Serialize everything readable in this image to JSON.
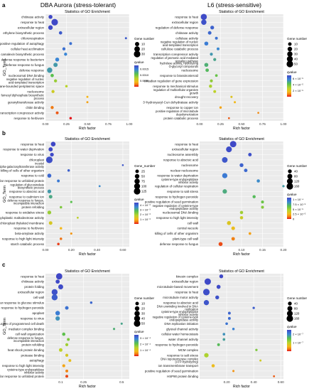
{
  "figure": {
    "left_title": "DBA Aurora (stress-tolerant)",
    "right_title": "L6 (stress-sensitive)",
    "panel_title": "Statistics of GO Enrichment",
    "y_label": "GO_Term",
    "x_label": "Rich factor",
    "gene_number_label": "Gene number",
    "qvalue_label": "qvalue"
  },
  "colors": {
    "gradient": [
      "#e4141b",
      "#f07a13",
      "#f6b81a",
      "#b9d42a",
      "#59c04e",
      "#3a86d6",
      "#3f46c6"
    ]
  },
  "chart_data": [
    {
      "type": "scatter",
      "row": "a",
      "side": "left",
      "title": "Statistics of GO Enrichment",
      "xlabel": "Rich factor",
      "ylabel": "GO_Term",
      "xlim": [
        0,
        1
      ],
      "x_ticks": [
        "0.00",
        "0.25",
        "0.50",
        "0.75",
        "1.00"
      ],
      "legend_size": {
        "title": "Gene number",
        "labels": [
          "10",
          "20",
          "30"
        ],
        "sizes": [
          10,
          20,
          30
        ]
      },
      "legend_color": {
        "title": "qvalue",
        "labels": [
          "0.0015",
          "0.0010",
          "0.0005"
        ],
        "stops": [
          0.0015,
          0.001,
          0.0005
        ],
        "range": [
          0,
          0.0018
        ]
      },
      "terms": [
        "chitinase activity",
        "response to heat",
        "extracellular region",
        "ethylene biosynthetic process",
        "chlororespiration",
        "positive regulation of autophagy",
        "cellular heat acclimation",
        "camalexin biosynthetic process",
        "defense response to bacterium",
        "defense response to fungus",
        "defense response",
        "nucleosomal DNA binding",
        "negative regulation of nucleic acid-templated transcription",
        "outer membrane-bounded periplasmic space",
        "nucleosome",
        "farnesyl diphosphate biosynthetic process",
        "geranyltransferase activity",
        "chitin binding",
        "transcription corepressor activity",
        "response to herbivore"
      ],
      "x": [
        0.06,
        0.11,
        0.06,
        0.18,
        0.96,
        0.3,
        0.22,
        0.24,
        0.14,
        0.12,
        0.05,
        0.08,
        0.12,
        0.25,
        0.09,
        0.5,
        0.5,
        0.08,
        0.14,
        0.3
      ],
      "gene": [
        8,
        30,
        12,
        5,
        1,
        3,
        4,
        4,
        8,
        10,
        18,
        5,
        4,
        2,
        4,
        1,
        1,
        4,
        3,
        2
      ],
      "qvalue": [
        1e-05,
        1e-05,
        2e-05,
        0.0001,
        0.0001,
        0.0002,
        0.0002,
        0.0003,
        0.0003,
        0.0004,
        0.0004,
        0.0006,
        0.0008,
        0.0009,
        0.001,
        0.0012,
        0.0013,
        0.0015,
        0.0016,
        0.0018
      ]
    },
    {
      "type": "scatter",
      "row": "a",
      "side": "right",
      "title": "Statistics of GO Enrichment",
      "xlabel": "Rich factor",
      "ylabel": "",
      "xlim": [
        0,
        1
      ],
      "x_ticks": [
        "0.00",
        "0.25",
        "0.50",
        "0.75",
        "1.00"
      ],
      "legend_size": {
        "title": "Gene number",
        "labels": [
          "10",
          "20",
          "30",
          "40",
          "50"
        ],
        "sizes": [
          10,
          20,
          30,
          40,
          50
        ]
      },
      "legend_color": {
        "title": "qvalue",
        "labels": [
          "6 × 10⁻⁵",
          "4 × 10⁻⁵",
          "2 × 10⁻⁵"
        ],
        "stops": [
          6e-05,
          4e-05,
          2e-05
        ],
        "range": [
          0,
          7e-05
        ]
      },
      "terms": [
        "response to heat",
        "extracellular region",
        "regulation of defense response",
        "chitinase activity",
        "cellulase activity",
        "negative regulation of nucleic acid-templated transcription",
        "cellulose catabolic process",
        "transcription corepressor activity",
        "regulation of jasmonic acid mediated signaling pathway",
        "hydrolase activity, hydrolyzing O-glycosyl compounds",
        "nucleosome",
        "response to brassinosteroid",
        "circadian regulation of gene expression",
        "response to mechanical stimulus",
        "regulation of multicellular organism growth",
        "drought recovery",
        "3'-hydroxyacyl-CoA dehydratase activity",
        "response to copper ion",
        "positive regulation of microtubule depolymerization",
        "protein catabolic process"
      ],
      "x": [
        0.05,
        0.05,
        0.15,
        0.12,
        0.2,
        0.08,
        0.22,
        0.14,
        0.18,
        0.08,
        0.09,
        0.2,
        0.14,
        0.13,
        0.18,
        0.38,
        0.42,
        0.25,
        0.7,
        0.35
      ],
      "gene": [
        42,
        30,
        12,
        10,
        5,
        14,
        5,
        6,
        6,
        14,
        9,
        4,
        6,
        7,
        5,
        2,
        2,
        3,
        1,
        1
      ],
      "qvalue": [
        1e-06,
        2e-06,
        5e-06,
        6e-06,
        8e-06,
        1e-05,
        1.2e-05,
        1.5e-05,
        1.8e-05,
        2e-05,
        2.2e-05,
        2.5e-05,
        3e-05,
        3.3e-05,
        3.6e-05,
        4.2e-05,
        4.6e-05,
        5e-05,
        5.5e-05,
        6.2e-05
      ]
    },
    {
      "type": "scatter",
      "row": "b",
      "side": "left",
      "title": "Statistics of GO Enrichment",
      "xlabel": "Rich factor",
      "ylabel": "GO_Term",
      "xlim": [
        0,
        0.65
      ],
      "x_ticks": [
        "0.00",
        "0.20",
        "0.40",
        "0.60"
      ],
      "legend_size": {
        "title": "Gene_number",
        "labels": [
          "25",
          "50",
          "75",
          "100",
          "125"
        ],
        "sizes": [
          25,
          50,
          75,
          100,
          125
        ]
      },
      "legend_color": {
        "title": "qvalue",
        "labels": [
          "4 × 10⁻³",
          "3 × 10⁻³",
          "2 × 10⁻³",
          "1 × 10⁻³"
        ],
        "stops": [
          0.004,
          0.003,
          0.002,
          0.001
        ],
        "range": [
          0,
          0.0045
        ]
      },
      "terms": [
        "response to heat",
        "response to water deprivation",
        "response to virus",
        "chloroplast",
        "inositol 3-alpha-galactosyltransferase activity",
        "killing of cells of other organism",
        "response to cold",
        "cellular response to unfolded protein",
        "regulation of glucosinolate biosynthetic process",
        "response to abscisic acid",
        "response to cadmium ion",
        "defense response to fungus, incompatible interaction",
        "protein refolding",
        "response to oxidative stress",
        "amyloplastic maltodextrose activity",
        "chloroplast thylakoid membrane",
        "response to herbivore",
        "beta-amylase activity",
        "response to high light intensity",
        "starch catabolic process"
      ],
      "x": [
        0.06,
        0.04,
        0.05,
        0.03,
        0.6,
        0.18,
        0.03,
        0.1,
        0.42,
        0.03,
        0.04,
        0.2,
        0.12,
        0.03,
        0.25,
        0.04,
        0.12,
        0.2,
        0.12,
        0.1
      ],
      "gene": [
        55,
        40,
        30,
        125,
        2,
        8,
        35,
        12,
        3,
        30,
        25,
        5,
        8,
        30,
        3,
        25,
        8,
        5,
        8,
        8
      ],
      "qvalue": [
        1e-05,
        2e-05,
        5e-05,
        0.0001,
        0.0002,
        0.0003,
        0.0004,
        0.0006,
        0.0008,
        0.001,
        0.0012,
        0.0015,
        0.0018,
        0.002,
        0.0023,
        0.0026,
        0.003,
        0.0034,
        0.0038,
        0.0042
      ]
    },
    {
      "type": "scatter",
      "row": "b",
      "side": "right",
      "title": "Statistics of GO Enrichment",
      "xlabel": "Rich factor",
      "ylabel": "",
      "xlim": [
        0,
        0.2
      ],
      "x_ticks": [
        "0.10",
        "0.15",
        "0.20"
      ],
      "legend_size": {
        "title": "Gene number",
        "labels": [
          "40",
          "80",
          "120",
          "160"
        ],
        "sizes": [
          40,
          80,
          120,
          160
        ]
      },
      "legend_color": {
        "title": "qvalue",
        "labels": [
          "1 × 10⁻⁴",
          "7.5 × 10⁻⁵",
          "5 × 10⁻⁵",
          "2.5 × 10⁻⁵",
          "0"
        ],
        "stops": [
          0.0001,
          7.5e-05,
          5e-05,
          2.5e-05,
          0
        ],
        "range": [
          0,
          0.00011
        ]
      },
      "terms": [
        "response to heat",
        "extracellular region",
        "nucleosome assembly",
        "response to abscisic acid",
        "nucleosome",
        "nuclear nucleosome",
        "response to water deprivation",
        "cysteine-type endopeptidase inhibitor activity",
        "regulation of cellular respiration",
        "response to salt stress",
        "response to hydrogen peroxide",
        "positive regulation of seed germination",
        "negative regulation of cysteine-type endopeptidase activity",
        "nucleosomal DNA binding",
        "response to high light intensity",
        "cell wall",
        "central vacuole",
        "killing of cells of other organism",
        "plant-type cell wall",
        "defense response to fungus"
      ],
      "x": [
        0.08,
        0.07,
        0.12,
        0.06,
        0.1,
        0.11,
        0.06,
        0.14,
        0.2,
        0.06,
        0.13,
        0.15,
        0.15,
        0.1,
        0.1,
        0.07,
        0.08,
        0.12,
        0.08,
        0.05
      ],
      "gene": [
        150,
        120,
        30,
        110,
        40,
        30,
        90,
        25,
        8,
        60,
        22,
        18,
        18,
        25,
        25,
        45,
        35,
        12,
        30,
        45
      ],
      "qvalue": [
        1e-06,
        2e-06,
        3e-06,
        5e-06,
        8e-06,
        1e-05,
        1.5e-05,
        2e-05,
        2.5e-05,
        3e-05,
        3.5e-05,
        4e-05,
        4.5e-05,
        5e-05,
        6e-05,
        6.5e-05,
        7e-05,
        8e-05,
        9e-05,
        0.0001
      ]
    },
    {
      "type": "scatter",
      "row": "c",
      "side": "left",
      "title": "Statistics of GO Enrichment",
      "xlabel": "Rich factor",
      "ylabel": "GO_Term",
      "xlim": [
        0,
        0.55
      ],
      "x_ticks": [
        "0.1",
        "0.25",
        "0.5"
      ],
      "legend_size": {
        "title": "Gene number",
        "labels": [
          "10",
          "20",
          "30",
          "40",
          "50"
        ],
        "sizes": [
          10,
          20,
          30,
          40,
          50
        ]
      },
      "legend_color": {
        "title": "qvalue",
        "labels": [
          "3 × 10⁻⁴",
          "2 × 10⁻⁴",
          "1 × 10⁻⁴"
        ],
        "stops": [
          0.0003,
          0.0002,
          0.0001
        ],
        "range": [
          0,
          0.00035
        ]
      },
      "terms": [
        "response to heat",
        "chitinase activity",
        "protein folding",
        "extracellular region",
        "cell wall",
        "cellular response to glucose stimulus",
        "response to hydrogen peroxide",
        "apoplast",
        "response to virus",
        "induction of programmed cell death",
        "mediator complex binding",
        "cell wall organization",
        "defense response to fungus, incompatible interaction",
        "protein refolding",
        "heat shock protein binding",
        "protease binding",
        "autophagy",
        "response to high light intensity",
        "cysteine-type endopeptidase inhibitor activity",
        "cellular response to unfolded protein"
      ],
      "x": [
        0.09,
        0.08,
        0.1,
        0.06,
        0.06,
        0.3,
        0.14,
        0.08,
        0.08,
        0.5,
        0.45,
        0.12,
        0.15,
        0.14,
        0.1,
        0.14,
        0.16,
        0.12,
        0.14,
        0.14
      ],
      "gene": [
        45,
        15,
        25,
        40,
        40,
        3,
        10,
        20,
        18,
        2,
        2,
        8,
        5,
        6,
        10,
        6,
        5,
        6,
        5,
        5
      ],
      "qvalue": [
        1e-06,
        3e-06,
        5e-06,
        1e-05,
        2e-05,
        3e-05,
        4e-05,
        5e-05,
        7e-05,
        9e-05,
        0.0001,
        0.00012,
        0.00014,
        0.00016,
        0.00018,
        0.0002,
        0.00022,
        0.00025,
        0.00028,
        0.00032
      ]
    },
    {
      "type": "scatter",
      "row": "c",
      "side": "right",
      "title": "Statistics of GO Enrichment",
      "xlabel": "Rich factor",
      "ylabel": "",
      "xlim": [
        0,
        0.62
      ],
      "x_ticks": [
        "0.20",
        "0.40",
        "0.60"
      ],
      "legend_size": {
        "title": "Gene number",
        "labels": [
          "40",
          "80",
          "120",
          "160"
        ],
        "sizes": [
          40,
          80,
          120,
          160
        ]
      },
      "legend_color": {
        "title": "qvalue",
        "labels": [
          "2 × 10⁻⁷",
          "1 × 10⁻⁷"
        ],
        "stops": [
          2e-07,
          1e-07
        ],
        "range": [
          0,
          2.5e-07
        ]
      },
      "terms": [
        "kinesin complex",
        "extracellular region",
        "microtubule-based movement",
        "response to heat",
        "microtubule motor activity",
        "response to abscisic acid",
        "DNA unwinding involved in DNA replication",
        "cysteine-type endopeptidase inhibitor activity",
        "negative regulation of cysteine-type endopeptidase activity",
        "DNA replication initiation",
        "glyoxal channel activity",
        "cellular water homeostasis",
        "water channel activity",
        "response to hydrogen peroxide",
        "MCM complex",
        "response to salt stress",
        "DNA topoisomerase complex (ATP-hydrolyzing)",
        "ion transmembrane transport",
        "positive regulation of seed germination",
        "HSP90 protein binding"
      ],
      "x": [
        0.16,
        0.06,
        0.14,
        0.05,
        0.13,
        0.05,
        0.4,
        0.22,
        0.22,
        0.2,
        0.25,
        0.18,
        0.18,
        0.14,
        0.42,
        0.05,
        0.45,
        0.1,
        0.25,
        0.55
      ],
      "gene": [
        40,
        150,
        45,
        160,
        40,
        90,
        8,
        15,
        15,
        12,
        10,
        12,
        12,
        15,
        8,
        60,
        5,
        25,
        6,
        4
      ],
      "qvalue": [
        1e-09,
        2e-09,
        3e-09,
        5e-09,
        8e-09,
        1e-08,
        1.5e-08,
        2e-08,
        2.5e-08,
        3e-08,
        4e-08,
        5e-08,
        6e-08,
        8e-08,
        1e-07,
        1.2e-07,
        1.4e-07,
        1.6e-07,
        1.9e-07,
        2.2e-07
      ]
    }
  ]
}
